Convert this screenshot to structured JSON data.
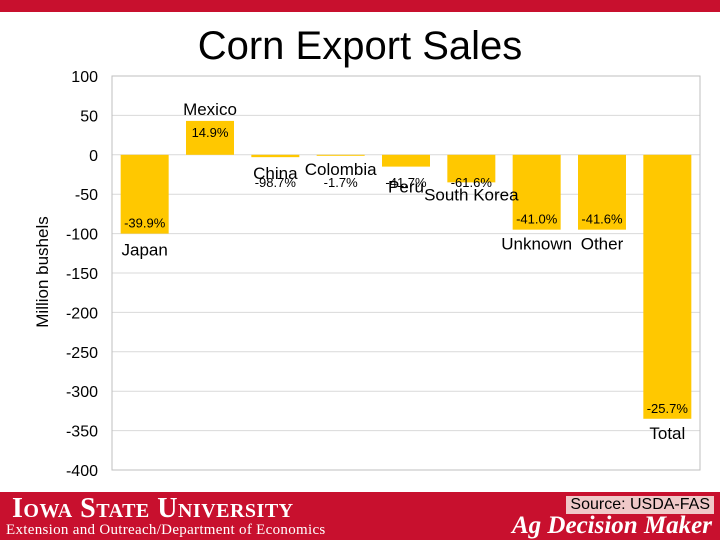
{
  "slide": {
    "title": "Corn Export Sales",
    "source": "Source: USDA-FAS",
    "footer_university": "Iowa State University",
    "footer_department": "Extension and Outreach/Department of Economics",
    "footer_brand": "Ag Decision Maker"
  },
  "colors": {
    "bar": "#ffc800",
    "brand_red": "#c8102e"
  },
  "chart_data": {
    "type": "bar",
    "title": "",
    "xlabel": "",
    "ylabel": "Million bushels",
    "ylim": [
      -400,
      100
    ],
    "yticks": [
      100,
      50,
      0,
      -50,
      -100,
      -150,
      -200,
      -250,
      -300,
      -350,
      -400
    ],
    "grid": true,
    "categories": [
      "Japan",
      "Mexico",
      "China",
      "Colombia",
      "Peru",
      "South Korea",
      "Unknown",
      "Other",
      "Total"
    ],
    "values": [
      -100,
      43,
      -3,
      -1,
      -15,
      -35,
      -95,
      -95,
      -335
    ],
    "data_labels": [
      "-39.9%",
      "14.9%",
      "-98.7%",
      "-1.7%",
      "-41.7%",
      "-61.6%",
      "-41.0%",
      "-41.6%",
      "-25.7%"
    ]
  }
}
